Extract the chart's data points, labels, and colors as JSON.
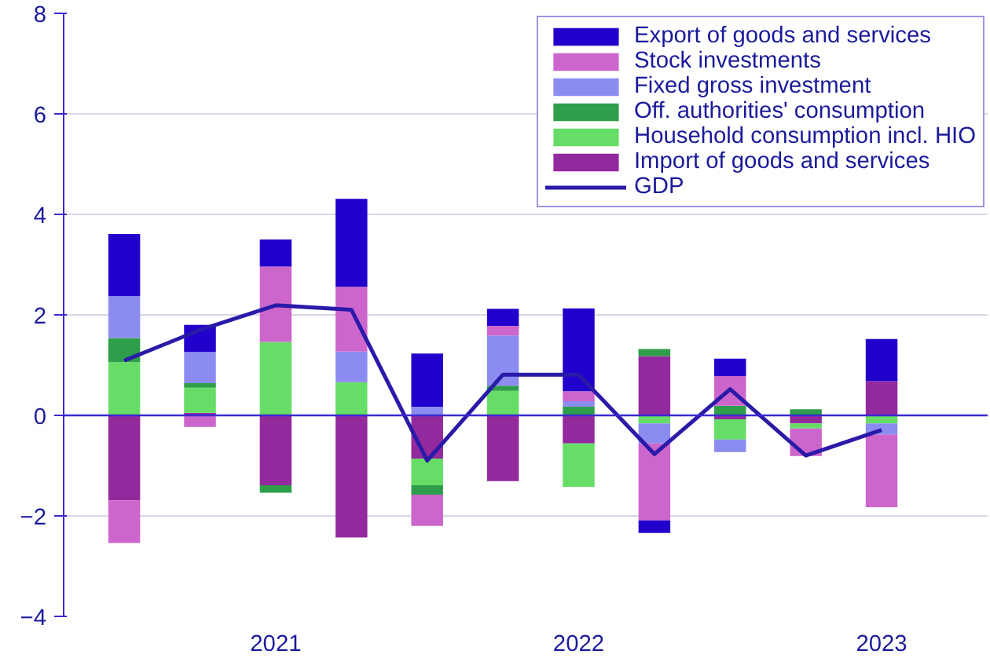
{
  "chart_data": {
    "type": "bar",
    "stacked": true,
    "categories": [
      null,
      null,
      "2021",
      null,
      null,
      null,
      "2022",
      null,
      null,
      null,
      "2023"
    ],
    "ylim": [
      -4,
      8
    ],
    "yticks": [
      -4,
      -2,
      0,
      2,
      4,
      6,
      8
    ],
    "grid": "y",
    "legend": "top right",
    "ref_lines": [
      {
        "axis": "y",
        "value": 0,
        "color": "#3a2ad0"
      }
    ],
    "series": [
      {
        "name": "Import of goods and services",
        "color": "#922a9e",
        "values": [
          -1.69,
          0.05,
          -1.39,
          -2.43,
          -0.86,
          -1.31,
          -0.56,
          1.18,
          -0.08,
          -0.16,
          0.68
        ]
      },
      {
        "name": "Household consumption incl. HIO",
        "color": "#66dd66",
        "values": [
          1.06,
          0.5,
          1.46,
          0.66,
          -0.53,
          0.49,
          -0.86,
          -0.16,
          -0.4,
          -0.1,
          -0.16
        ]
      },
      {
        "name": "Off. authorities' consumption",
        "color": "#2e9e4a",
        "values": [
          0.48,
          0.09,
          -0.15,
          null,
          -0.19,
          0.1,
          0.17,
          0.14,
          0.19,
          0.12,
          null
        ]
      },
      {
        "name": "Fixed gross investment",
        "color": "#8c8cf0",
        "values": [
          0.83,
          0.62,
          null,
          0.61,
          0.17,
          1.0,
          0.11,
          -0.4,
          -0.25,
          null,
          -0.22
        ]
      },
      {
        "name": "Stock investments",
        "color": "#cc66cc",
        "values": [
          -0.85,
          -0.23,
          1.5,
          1.29,
          -0.62,
          0.19,
          0.2,
          -1.53,
          0.59,
          -0.55,
          -1.45
        ]
      },
      {
        "name": "Export of goods and services",
        "color": "#2200cc",
        "values": [
          1.24,
          0.54,
          0.54,
          1.75,
          1.06,
          0.34,
          1.65,
          -0.25,
          0.35,
          null,
          0.84
        ]
      },
      {
        "name": "GDP",
        "type": "line",
        "color": "#2a1aa8",
        "values": [
          1.09,
          1.7,
          2.19,
          2.1,
          -0.9,
          0.81,
          0.81,
          -0.77,
          0.52,
          -0.8,
          -0.29
        ]
      }
    ]
  }
}
